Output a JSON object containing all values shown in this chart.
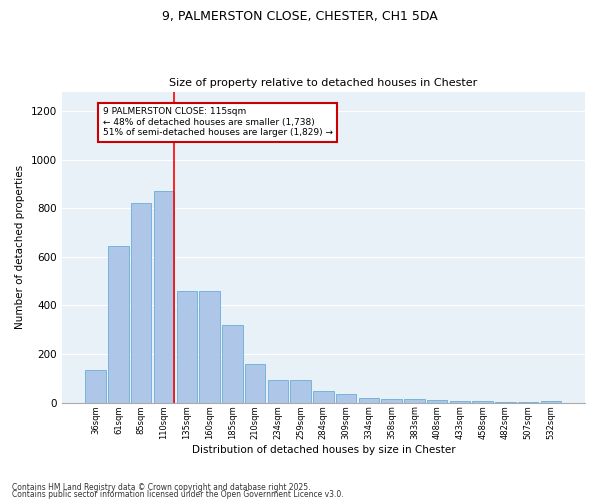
{
  "title1": "9, PALMERSTON CLOSE, CHESTER, CH1 5DA",
  "title2": "Size of property relative to detached houses in Chester",
  "xlabel": "Distribution of detached houses by size in Chester",
  "ylabel": "Number of detached properties",
  "categories": [
    "36sqm",
    "61sqm",
    "85sqm",
    "110sqm",
    "135sqm",
    "160sqm",
    "185sqm",
    "210sqm",
    "234sqm",
    "259sqm",
    "284sqm",
    "309sqm",
    "334sqm",
    "358sqm",
    "383sqm",
    "408sqm",
    "433sqm",
    "458sqm",
    "482sqm",
    "507sqm",
    "532sqm"
  ],
  "values": [
    135,
    645,
    820,
    870,
    460,
    460,
    320,
    160,
    95,
    95,
    50,
    37,
    20,
    15,
    15,
    10,
    5,
    5,
    2,
    2,
    5
  ],
  "bar_color": "#aec6e8",
  "bar_edge_color": "#6aaed6",
  "background_color": "#e8f0f8",
  "grid_color": "#ffffff",
  "red_line_index": 3,
  "annotation_text": "9 PALMERSTON CLOSE: 115sqm\n← 48% of detached houses are smaller (1,738)\n51% of semi-detached houses are larger (1,829) →",
  "annotation_box_color": "#ffffff",
  "annotation_box_edge_color": "#cc0000",
  "footnote1": "Contains HM Land Registry data © Crown copyright and database right 2025.",
  "footnote2": "Contains public sector information licensed under the Open Government Licence v3.0.",
  "ylim": [
    0,
    1280
  ],
  "yticks": [
    0,
    200,
    400,
    600,
    800,
    1000,
    1200
  ]
}
